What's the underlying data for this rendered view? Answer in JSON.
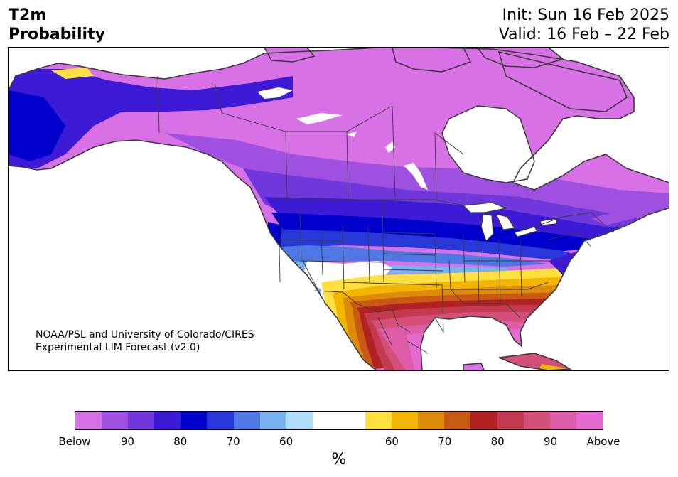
{
  "header": {
    "title_line1": "T2m",
    "title_line2": "Probability",
    "init_text": "Init: Sun 16 Feb 2025",
    "valid_text": "Valid: 16 Feb – 22 Feb"
  },
  "map": {
    "credit_line1": "NOAA/PSL and University of Colorado/CIRES",
    "credit_line2": "Experimental LIM Forecast (v2.0)",
    "land_edge_color": "#3a3a3a",
    "background_color": "#ffffff"
  },
  "colorbar": {
    "colors": [
      "#d870e6",
      "#a050e0",
      "#7038dc",
      "#3c1ad6",
      "#0000cc",
      "#2838d8",
      "#4e78e6",
      "#78b2f0",
      "#b0dcfa",
      "#ffffff",
      "#ffffff",
      "#ffe040",
      "#f2b600",
      "#de8a0a",
      "#c85a14",
      "#b22222",
      "#c43a50",
      "#d4507a",
      "#dc5ca8",
      "#e46ad2"
    ],
    "tick_labels": [
      "Below",
      "90",
      "80",
      "70",
      "60",
      "60",
      "70",
      "80",
      "90",
      "Above"
    ],
    "unit": "%"
  }
}
